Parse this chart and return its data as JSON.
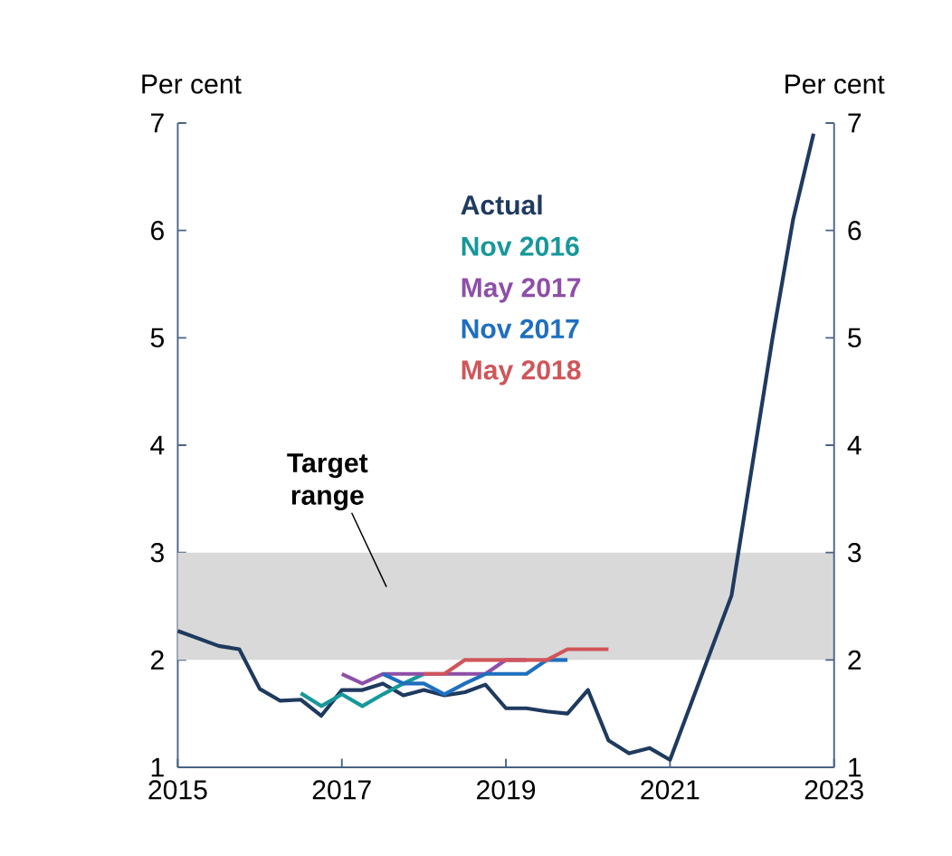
{
  "chart_data": {
    "type": "line",
    "ylabel": "Per cent",
    "y2label": "Per cent",
    "xlim": [
      2015,
      2023
    ],
    "xticks": [
      2015,
      2017,
      2019,
      2021,
      2023
    ],
    "ylim": [
      1,
      7
    ],
    "yticks": [
      1,
      2,
      3,
      4,
      5,
      6,
      7
    ],
    "y2lim": [
      1,
      7
    ],
    "y2ticks": [
      1,
      2,
      3,
      4,
      5,
      6,
      7
    ],
    "legend": "top",
    "bands": [
      {
        "axis": "y",
        "from": 2,
        "to": 3,
        "label": "Target range",
        "color": "#d9d9d9"
      }
    ],
    "series": [
      {
        "name": "Actual",
        "color": "#1f3a5f",
        "x": [
          2015.0,
          2015.25,
          2015.5,
          2015.75,
          2016.0,
          2016.25,
          2016.5,
          2016.75,
          2017.0,
          2017.25,
          2017.5,
          2017.75,
          2018.0,
          2018.25,
          2018.5,
          2018.75,
          2019.0,
          2019.25,
          2019.5,
          2019.75,
          2020.0,
          2020.25,
          2020.5,
          2020.75,
          2021.0,
          2021.75,
          2022.25,
          2022.5,
          2022.75
        ],
        "values": [
          2.27,
          2.2,
          2.13,
          2.1,
          1.73,
          1.62,
          1.63,
          1.48,
          1.72,
          1.72,
          1.78,
          1.67,
          1.72,
          1.67,
          1.7,
          1.77,
          1.55,
          1.55,
          1.52,
          1.5,
          1.72,
          1.25,
          1.13,
          1.18,
          1.07,
          2.6,
          5.0,
          6.1,
          6.9
        ]
      },
      {
        "name": "Nov 2016",
        "color": "#17989a",
        "x": [
          2016.5,
          2016.75,
          2017.0,
          2017.25,
          2017.5,
          2017.75,
          2018.0
        ],
        "values": [
          1.69,
          1.57,
          1.68,
          1.57,
          1.68,
          1.78,
          1.87
        ]
      },
      {
        "name": "May 2017",
        "color": "#8e4fa8",
        "x": [
          2017.0,
          2017.25,
          2017.5,
          2017.75,
          2018.0,
          2018.25,
          2018.5,
          2018.75,
          2019.0,
          2019.25
        ],
        "values": [
          1.87,
          1.78,
          1.87,
          1.87,
          1.87,
          1.87,
          1.87,
          1.87,
          2.0,
          2.0
        ]
      },
      {
        "name": "Nov 2017",
        "color": "#1f6fbf",
        "x": [
          2017.5,
          2017.75,
          2018.0,
          2018.25,
          2018.5,
          2018.75,
          2019.0,
          2019.25,
          2019.5,
          2019.75
        ],
        "values": [
          1.87,
          1.78,
          1.78,
          1.68,
          1.78,
          1.87,
          1.87,
          1.87,
          2.0,
          2.0
        ]
      },
      {
        "name": "May 2018",
        "color": "#d0555a",
        "x": [
          2018.0,
          2018.25,
          2018.5,
          2018.75,
          2019.0,
          2019.25,
          2019.5,
          2019.75,
          2020.0,
          2020.25
        ],
        "values": [
          1.87,
          1.87,
          2.0,
          2.0,
          2.0,
          2.0,
          2.0,
          2.1,
          2.1,
          2.1
        ]
      }
    ]
  }
}
